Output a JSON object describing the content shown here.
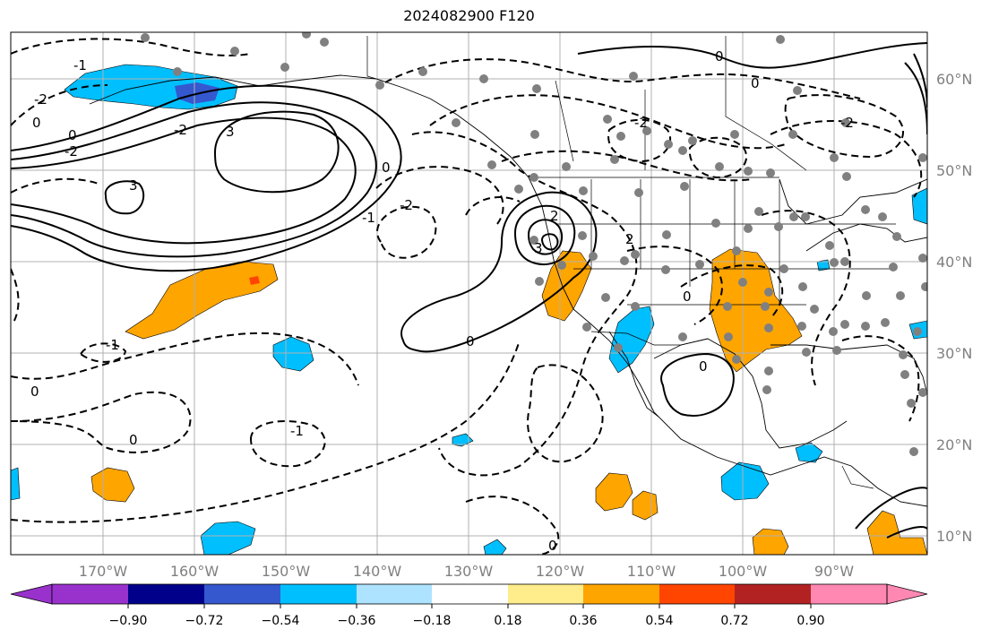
{
  "title": "2024082900 F120",
  "map": {
    "lon_ticks": [
      "170°W",
      "160°W",
      "150°W",
      "140°W",
      "130°W",
      "120°W",
      "110°W",
      "100°W",
      "90°W"
    ],
    "lat_ticks": [
      "10°N",
      "20°N",
      "30°N",
      "40°N",
      "50°N",
      "60°N"
    ],
    "contour_labels": [
      "0",
      "-2",
      "-1",
      "0",
      "-2",
      "3",
      "3",
      "-2",
      "-2",
      "0",
      "-2",
      "0",
      "-2",
      "-1",
      "0",
      "2",
      "3",
      "2",
      "-1",
      "0",
      "-1",
      "0",
      "0",
      "0",
      "0",
      "0"
    ],
    "station_marker_color": "#808080"
  },
  "colorbar": {
    "ticks": [
      "−0.90",
      "−0.72",
      "−0.54",
      "−0.36",
      "−0.18",
      "0.18",
      "0.36",
      "0.54",
      "0.72",
      "0.90"
    ],
    "colors": [
      "#9932cc",
      "#00008b",
      "#3558cf",
      "#00bfff",
      "#aee3ff",
      "#ffffff",
      "#ffec8b",
      "#ffa500",
      "#ff4500",
      "#b22222",
      "#ff88b2"
    ]
  }
}
